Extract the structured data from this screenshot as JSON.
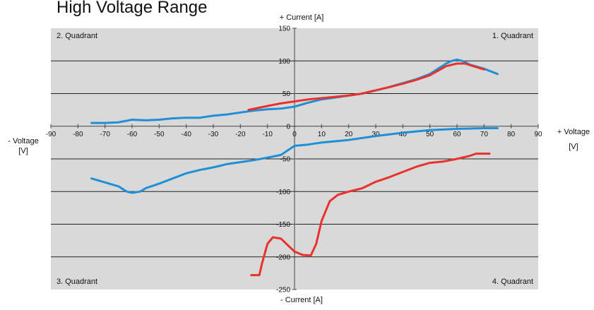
{
  "chart_data": {
    "type": "line",
    "title": "High Voltage Range",
    "quadrants": [
      "1. Quadrant",
      "2. Quadrant",
      "3. Quadrant",
      "4. Quadrant"
    ],
    "x_axis": {
      "label_pos": "+ Voltage",
      "label_neg": "- Voltage",
      "unit": "[V]",
      "min": -90,
      "max": 90,
      "step": 10,
      "ticks": [
        "-90",
        "-80",
        "-70",
        "-60",
        "-50",
        "-40",
        "-30",
        "-20",
        "-10",
        "0",
        "10",
        "20",
        "30",
        "40",
        "50",
        "60",
        "70",
        "80",
        "90"
      ]
    },
    "y_axis": {
      "label_pos": "+ Current [A]",
      "label_neg": "- Current [A]",
      "min": -250,
      "max": 150,
      "step": 50,
      "ticks": [
        "150",
        "100",
        "50",
        "0",
        "-50",
        "-100",
        "-150",
        "-200",
        "-250"
      ]
    },
    "grid": true,
    "colors": {
      "blue": "#1f8fd6",
      "red": "#e8322b",
      "plot_bg": "#d9d9d9",
      "grid": "#222222"
    },
    "series": [
      {
        "color": "blue",
        "points": [
          [
            -75,
            5
          ],
          [
            -70,
            5
          ],
          [
            -65,
            6
          ],
          [
            -60,
            10
          ],
          [
            -55,
            9
          ],
          [
            -50,
            10
          ],
          [
            -45,
            12
          ],
          [
            -40,
            13
          ],
          [
            -35,
            13
          ],
          [
            -30,
            16
          ],
          [
            -25,
            18
          ],
          [
            -20,
            21
          ],
          [
            -15,
            24
          ],
          [
            -10,
            26
          ],
          [
            -5,
            27
          ],
          [
            0,
            30
          ],
          [
            5,
            36
          ],
          [
            10,
            41
          ],
          [
            15,
            44
          ],
          [
            20,
            47
          ],
          [
            25,
            50
          ],
          [
            30,
            55
          ],
          [
            35,
            60
          ],
          [
            40,
            66
          ],
          [
            45,
            72
          ],
          [
            50,
            80
          ],
          [
            53,
            88
          ],
          [
            56,
            96
          ],
          [
            58,
            100
          ],
          [
            60,
            102
          ],
          [
            62,
            100
          ],
          [
            65,
            94
          ],
          [
            70,
            88
          ],
          [
            75,
            80
          ]
        ]
      },
      {
        "color": "red",
        "points": [
          [
            -17,
            25
          ],
          [
            -10,
            31
          ],
          [
            -5,
            35
          ],
          [
            0,
            38
          ],
          [
            5,
            41
          ],
          [
            10,
            43
          ],
          [
            15,
            45
          ],
          [
            20,
            47
          ],
          [
            25,
            50
          ],
          [
            30,
            55
          ],
          [
            35,
            60
          ],
          [
            40,
            65
          ],
          [
            45,
            71
          ],
          [
            50,
            78
          ],
          [
            53,
            85
          ],
          [
            56,
            92
          ],
          [
            60,
            96
          ],
          [
            63,
            96
          ],
          [
            66,
            92
          ],
          [
            70,
            87
          ]
        ]
      },
      {
        "color": "blue",
        "points": [
          [
            -75,
            -80
          ],
          [
            -70,
            -86
          ],
          [
            -65,
            -92
          ],
          [
            -62,
            -100
          ],
          [
            -60,
            -102
          ],
          [
            -57,
            -100
          ],
          [
            -55,
            -95
          ],
          [
            -50,
            -88
          ],
          [
            -45,
            -80
          ],
          [
            -40,
            -72
          ],
          [
            -35,
            -67
          ],
          [
            -30,
            -63
          ],
          [
            -25,
            -58
          ],
          [
            -20,
            -55
          ],
          [
            -15,
            -52
          ],
          [
            -10,
            -48
          ],
          [
            -5,
            -44
          ],
          [
            0,
            -30
          ],
          [
            5,
            -28
          ],
          [
            10,
            -25
          ],
          [
            20,
            -21
          ],
          [
            30,
            -15
          ],
          [
            40,
            -10
          ],
          [
            50,
            -6
          ],
          [
            60,
            -4
          ],
          [
            70,
            -3
          ],
          [
            75,
            -3
          ]
        ]
      },
      {
        "color": "red",
        "points": [
          [
            -16,
            -228
          ],
          [
            -13,
            -228
          ],
          [
            -12,
            -210
          ],
          [
            -10,
            -180
          ],
          [
            -8,
            -170
          ],
          [
            -5,
            -172
          ],
          [
            -3,
            -180
          ],
          [
            0,
            -192
          ],
          [
            3,
            -197
          ],
          [
            6,
            -198
          ],
          [
            8,
            -180
          ],
          [
            10,
            -145
          ],
          [
            13,
            -115
          ],
          [
            16,
            -105
          ],
          [
            20,
            -100
          ],
          [
            25,
            -95
          ],
          [
            30,
            -85
          ],
          [
            35,
            -78
          ],
          [
            40,
            -70
          ],
          [
            45,
            -62
          ],
          [
            50,
            -56
          ],
          [
            55,
            -54
          ],
          [
            60,
            -50
          ],
          [
            65,
            -45
          ],
          [
            67,
            -42
          ],
          [
            72,
            -42
          ]
        ]
      }
    ]
  }
}
